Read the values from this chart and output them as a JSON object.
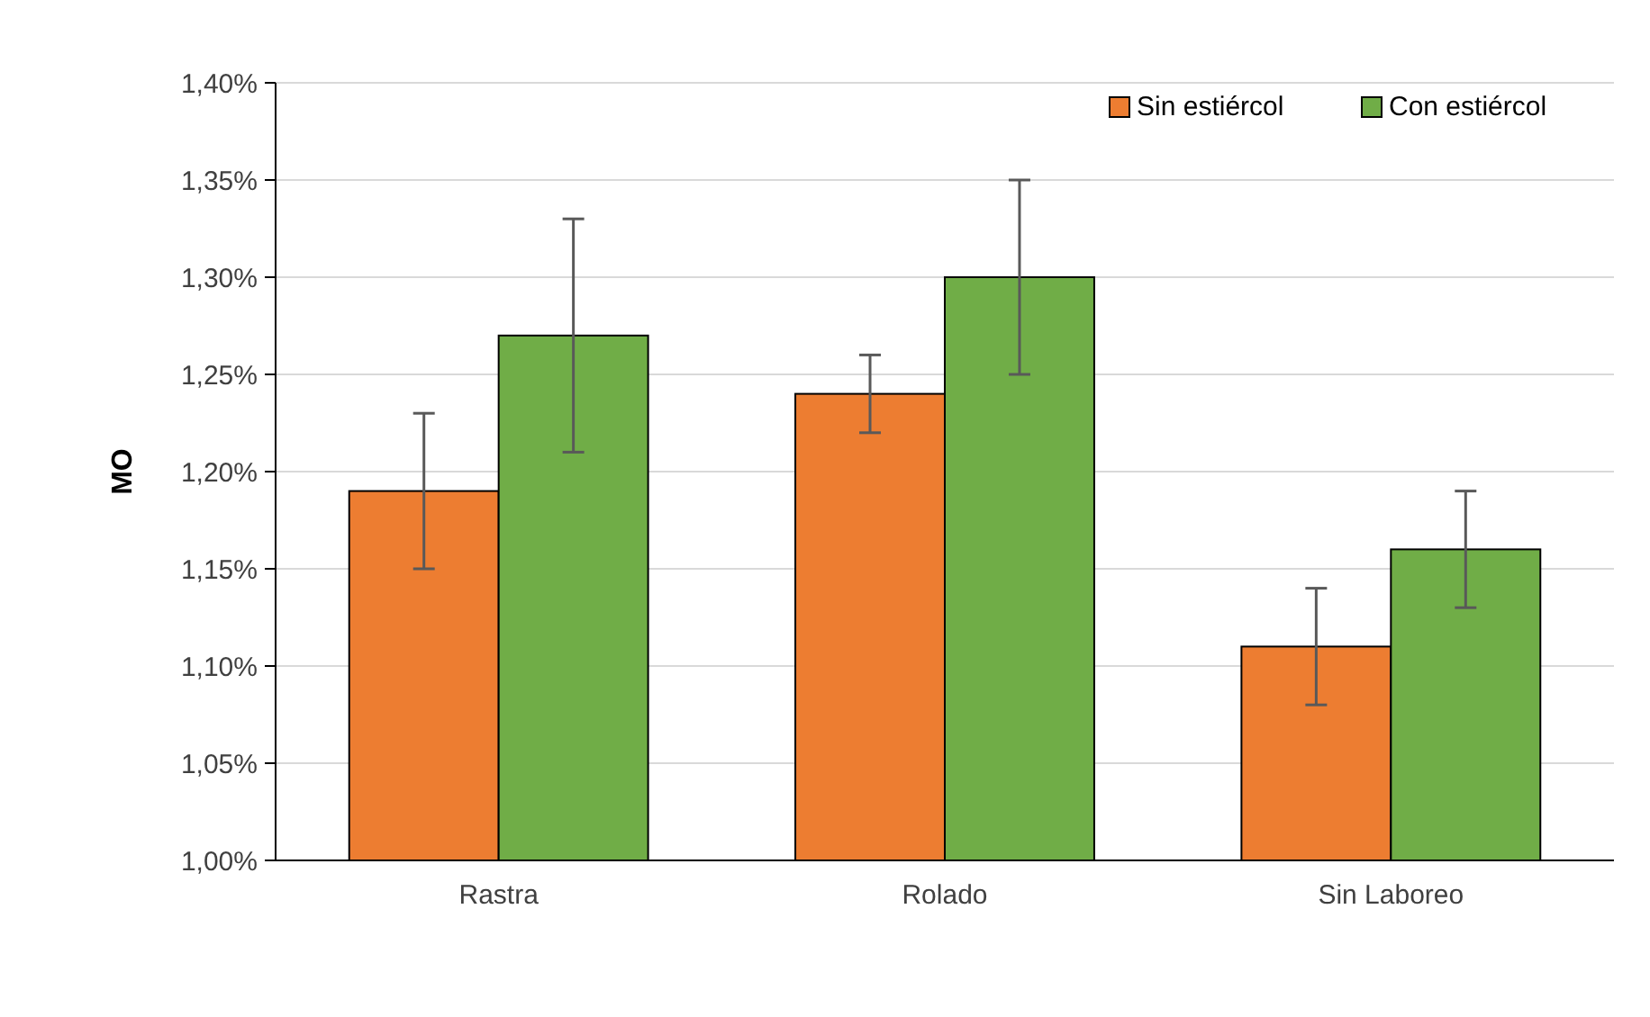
{
  "chart_data": {
    "type": "bar",
    "ylabel": "MO",
    "categories": [
      "Rastra",
      "Rolado",
      "Sin Laboreo"
    ],
    "series": [
      {
        "name": "Sin estiércol",
        "color": "#ed7d31",
        "values": [
          1.19,
          1.24,
          1.11
        ],
        "errors": [
          0.04,
          0.02,
          0.03
        ]
      },
      {
        "name": "Con estiércol",
        "color": "#70ad47",
        "values": [
          1.27,
          1.3,
          1.16
        ],
        "errors": [
          0.06,
          0.05,
          0.03
        ]
      }
    ],
    "ylim": [
      1.0,
      1.4
    ],
    "yticks": [
      {
        "value": 1.0,
        "label": "1,00%"
      },
      {
        "value": 1.05,
        "label": "1,05%"
      },
      {
        "value": 1.1,
        "label": "1,10%"
      },
      {
        "value": 1.15,
        "label": "1,15%"
      },
      {
        "value": 1.2,
        "label": "1,20%"
      },
      {
        "value": 1.25,
        "label": "1,25%"
      },
      {
        "value": 1.3,
        "label": "1,30%"
      },
      {
        "value": 1.35,
        "label": "1,35%"
      },
      {
        "value": 1.4,
        "label": "1,40%"
      }
    ],
    "grid": "y",
    "legend": "top right"
  }
}
